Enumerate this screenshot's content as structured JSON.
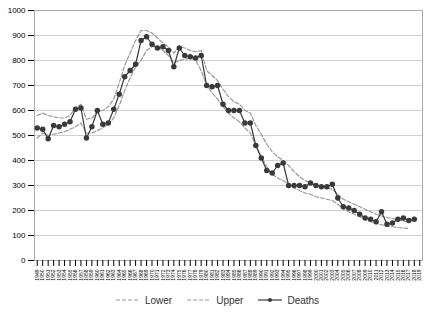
{
  "chart_data": {
    "type": "line",
    "x": [
      1949,
      1950,
      1951,
      1952,
      1953,
      1954,
      1955,
      1956,
      1957,
      1958,
      1959,
      1960,
      1961,
      1962,
      1963,
      1964,
      1965,
      1966,
      1967,
      1968,
      1969,
      1970,
      1971,
      1972,
      1973,
      1974,
      1975,
      1976,
      1977,
      1978,
      1979,
      1980,
      1981,
      1982,
      1983,
      1984,
      1985,
      1986,
      1987,
      1988,
      1989,
      1990,
      1991,
      1992,
      1993,
      1994,
      1995,
      1996,
      1997,
      1998,
      1999,
      2000,
      2001,
      2002,
      2003,
      2004,
      2005,
      2006,
      2007,
      2008,
      2009,
      2010,
      2011,
      2012,
      2013,
      2014,
      2015,
      2016,
      2017,
      2018,
      2019
    ],
    "series": [
      {
        "name": "Lower",
        "color": "#999999",
        "line_style": "dashed",
        "values": [
          490,
          510,
          500,
          505,
          510,
          515,
          525,
          535,
          550,
          510,
          510,
          520,
          530,
          545,
          570,
          620,
          680,
          730,
          775,
          800,
          840,
          855,
          855,
          840,
          820,
          790,
          800,
          805,
          810,
          800,
          760,
          700,
          670,
          645,
          615,
          590,
          570,
          555,
          530,
          510,
          460,
          415,
          375,
          345,
          330,
          320,
          305,
          290,
          280,
          270,
          265,
          255,
          250,
          245,
          240,
          225,
          205,
          195,
          185,
          175,
          165,
          155,
          148,
          143,
          138,
          135,
          132,
          130,
          128,
          null,
          null
        ]
      },
      {
        "name": "Upper",
        "color": "#999999",
        "line_style": "dashed",
        "values": [
          580,
          590,
          580,
          575,
          570,
          570,
          580,
          610,
          625,
          565,
          570,
          595,
          600,
          615,
          645,
          710,
          780,
          830,
          880,
          920,
          920,
          910,
          890,
          870,
          855,
          830,
          855,
          850,
          840,
          835,
          840,
          760,
          740,
          720,
          685,
          655,
          635,
          625,
          600,
          590,
          540,
          505,
          465,
          435,
          415,
          400,
          380,
          355,
          335,
          320,
          310,
          300,
          295,
          290,
          285,
          265,
          245,
          235,
          225,
          215,
          205,
          195,
          185,
          178,
          172,
          168,
          162,
          158,
          153,
          null,
          null
        ]
      },
      {
        "name": "Deaths",
        "color": "#3a3a3a",
        "line_style": "solid",
        "marker": "o",
        "values": [
          530,
          525,
          487,
          540,
          535,
          545,
          555,
          605,
          610,
          490,
          535,
          600,
          545,
          550,
          605,
          665,
          735,
          760,
          785,
          880,
          895,
          865,
          850,
          855,
          840,
          775,
          850,
          820,
          815,
          810,
          820,
          700,
          695,
          700,
          625,
          600,
          600,
          600,
          550,
          550,
          460,
          410,
          360,
          350,
          380,
          390,
          300,
          300,
          300,
          295,
          310,
          300,
          295,
          295,
          305,
          250,
          215,
          210,
          200,
          185,
          170,
          165,
          155,
          195,
          145,
          150,
          165,
          170,
          160,
          165,
          null
        ]
      }
    ],
    "xlim": [
      1948.5,
      2019.5
    ],
    "xticks": [
      1949,
      1950,
      1951,
      1952,
      1953,
      1954,
      1955,
      1956,
      1957,
      1958,
      1959,
      1960,
      1961,
      1962,
      1963,
      1964,
      1965,
      1966,
      1967,
      1968,
      1969,
      1970,
      1971,
      1972,
      1973,
      1974,
      1975,
      1976,
      1977,
      1978,
      1979,
      1980,
      1981,
      1982,
      1983,
      1984,
      1985,
      1986,
      1987,
      1988,
      1989,
      1990,
      1991,
      1992,
      1993,
      1994,
      1995,
      1996,
      1997,
      1998,
      1999,
      2000,
      2001,
      2002,
      2003,
      2004,
      2005,
      2006,
      2007,
      2008,
      2009,
      2010,
      2011,
      2012,
      2013,
      2014,
      2015,
      2016,
      2017,
      2018,
      2019
    ],
    "ylim": [
      0,
      1000
    ],
    "yticks": [
      0,
      100,
      200,
      300,
      400,
      500,
      600,
      700,
      800,
      900,
      1000
    ],
    "grid": true,
    "legend": "bottom"
  }
}
